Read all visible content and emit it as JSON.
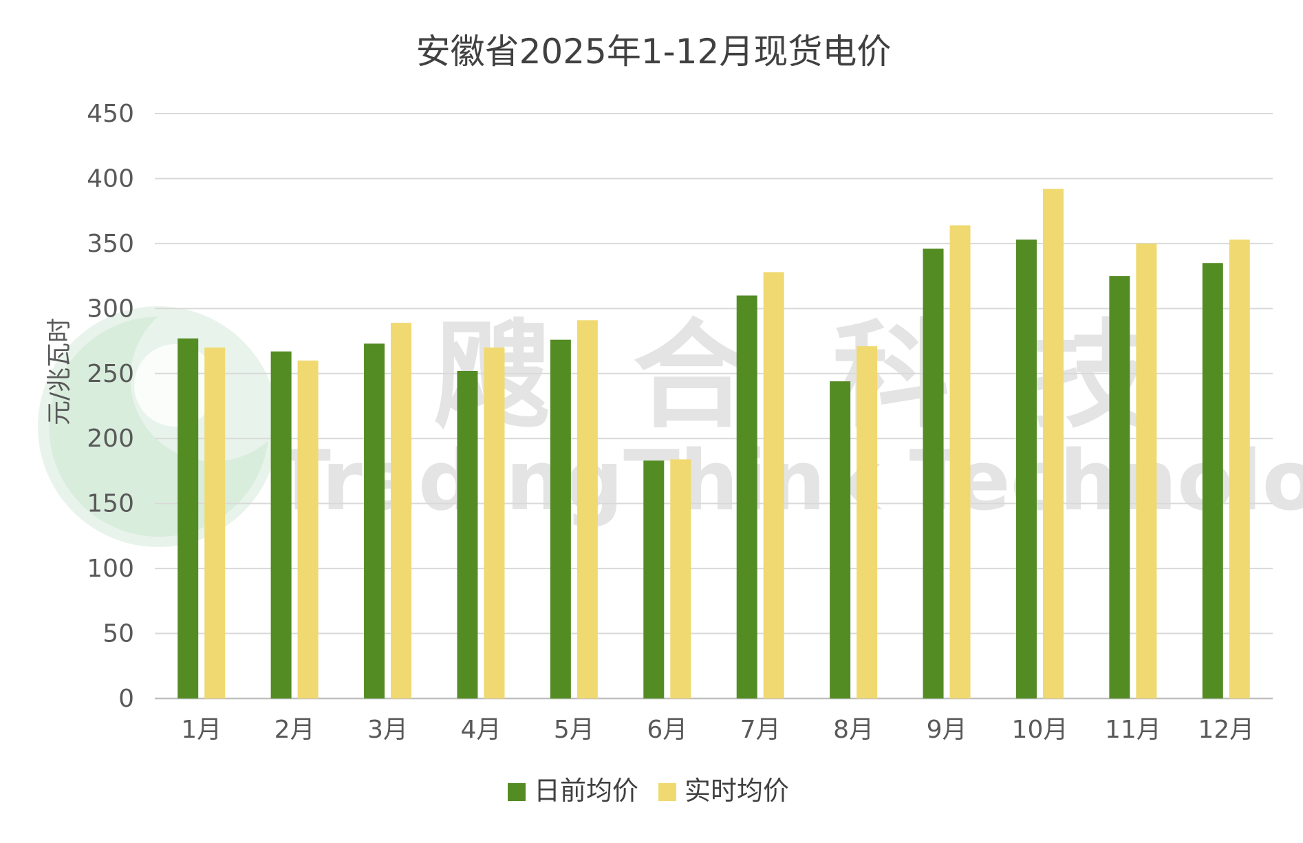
{
  "chart_data": {
    "type": "bar",
    "title": "安徽省2025年1-12月现货电价",
    "xlabel": "",
    "ylabel": "元/兆瓦时",
    "ylim": [
      0,
      450
    ],
    "yticks": [
      0,
      50,
      100,
      150,
      200,
      250,
      300,
      350,
      400,
      450
    ],
    "grid": true,
    "legend_position": "bottom",
    "categories": [
      "1月",
      "2月",
      "3月",
      "4月",
      "5月",
      "6月",
      "7月",
      "8月",
      "9月",
      "10月",
      "11月",
      "12月"
    ],
    "series": [
      {
        "name": "日前均价",
        "color": "#548c24",
        "values": [
          277,
          267,
          273,
          252,
          276,
          183,
          310,
          244,
          346,
          353,
          325,
          335
        ]
      },
      {
        "name": "实时均价",
        "color": "#f0d970",
        "values": [
          270,
          260,
          289,
          270,
          291,
          184,
          328,
          271,
          364,
          392,
          350,
          353
        ]
      }
    ]
  },
  "watermark": {
    "cn_text": "飕合科技",
    "en_text": "TradingThink Technology"
  },
  "colors": {
    "grid": "#d9d9d9",
    "axis": "#bfbfbf",
    "watermark_green": "#cfe8d5",
    "watermark_gray": "#d9d9d9"
  }
}
